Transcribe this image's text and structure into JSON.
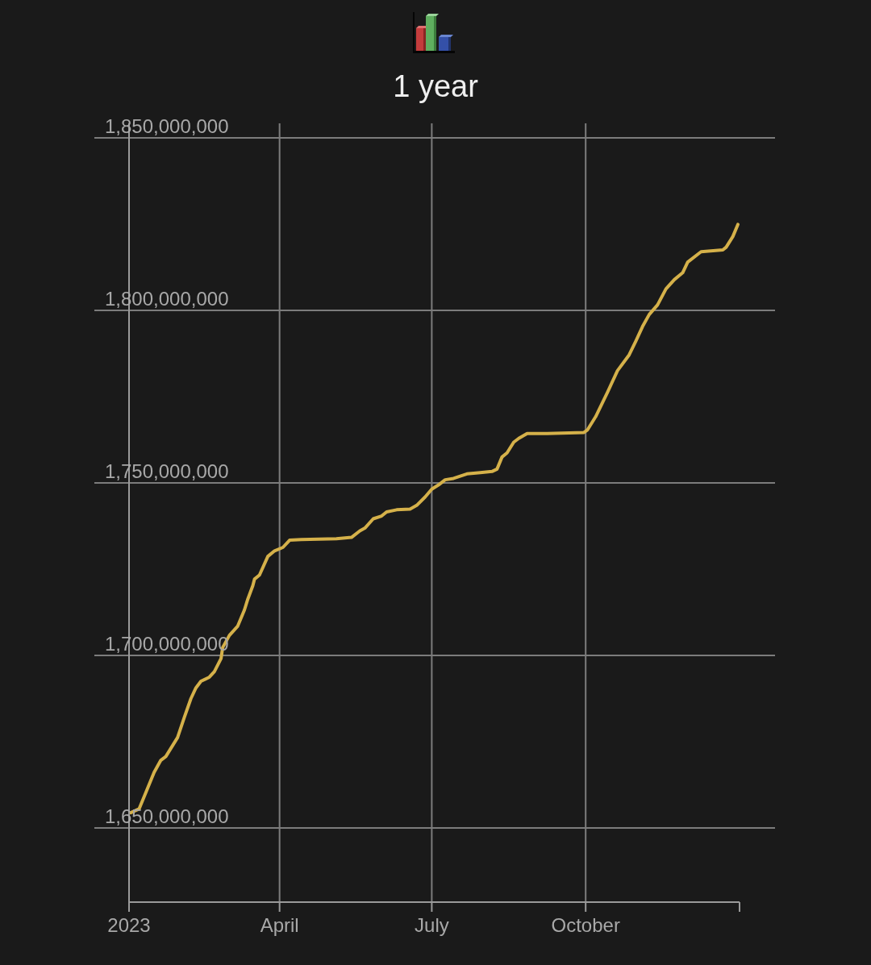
{
  "chart_data": {
    "type": "line",
    "title": "1 year",
    "x": [
      "2023-01-02",
      "2023-01-07",
      "2023-01-12",
      "2023-01-16",
      "2023-01-20",
      "2023-01-23",
      "2023-01-30",
      "2023-02-03",
      "2023-02-07",
      "2023-02-10",
      "2023-02-13",
      "2023-02-18",
      "2023-02-21",
      "2023-02-25",
      "2023-02-26",
      "2023-03-02",
      "2023-03-07",
      "2023-03-11",
      "2023-03-13",
      "2023-03-16",
      "2023-03-17",
      "2023-03-20",
      "2023-03-25",
      "2023-03-29",
      "2023-04-03",
      "2023-04-07",
      "2023-04-14",
      "2023-05-05",
      "2023-05-14",
      "2023-05-19",
      "2023-05-22",
      "2023-05-27",
      "2023-06-01",
      "2023-06-04",
      "2023-06-10",
      "2023-06-18",
      "2023-06-22",
      "2023-06-27",
      "2023-07-01",
      "2023-07-05",
      "2023-07-09",
      "2023-07-14",
      "2023-07-22",
      "2023-07-30",
      "2023-08-06",
      "2023-08-09",
      "2023-08-12",
      "2023-08-15",
      "2023-08-19",
      "2023-08-22",
      "2023-08-27",
      "2023-09-08",
      "2023-09-30",
      "2023-10-02",
      "2023-10-07",
      "2023-10-14",
      "2023-10-20",
      "2023-10-27",
      "2023-10-31",
      "2023-11-04",
      "2023-11-08",
      "2023-11-13",
      "2023-11-18",
      "2023-11-23",
      "2023-11-28",
      "2023-12-01",
      "2023-12-09",
      "2023-12-22",
      "2023-12-24",
      "2023-12-28",
      "2023-12-31"
    ],
    "series": [
      {
        "color": "#d5b14a",
        "values": [
          1654400000,
          1655500000,
          1661400000,
          1666100000,
          1669600000,
          1670700000,
          1676200000,
          1682000000,
          1687500000,
          1690600000,
          1692500000,
          1693700000,
          1695300000,
          1699100000,
          1702300000,
          1705800000,
          1708500000,
          1713200000,
          1716300000,
          1720200000,
          1722100000,
          1723300000,
          1728700000,
          1730300000,
          1731300000,
          1733400000,
          1733600000,
          1733800000,
          1734200000,
          1736100000,
          1736900000,
          1739600000,
          1740400000,
          1741600000,
          1742200000,
          1742400000,
          1743500000,
          1745900000,
          1748200000,
          1749400000,
          1750900000,
          1751300000,
          1752600000,
          1753000000,
          1753300000,
          1754000000,
          1757500000,
          1758700000,
          1761800000,
          1762900000,
          1764300000,
          1764300000,
          1764600000,
          1765300000,
          1769200000,
          1776200000,
          1782500000,
          1787100000,
          1791100000,
          1795300000,
          1798800000,
          1801600000,
          1806200000,
          1808900000,
          1810900000,
          1814000000,
          1817000000,
          1817500000,
          1818300000,
          1821400000,
          1824900000
        ]
      }
    ],
    "xlim": [
      "2023-01-01",
      "2024-01-01"
    ],
    "xticks": [
      {
        "value": "2023-01-01",
        "label": "2023"
      },
      {
        "value": "2023-04-01",
        "label": "April"
      },
      {
        "value": "2023-07-01",
        "label": "July"
      },
      {
        "value": "2023-10-01",
        "label": "October"
      },
      {
        "value": "2024-01-01",
        "label": null
      }
    ],
    "ylim": [
      1628500000,
      1854200000
    ],
    "yticks": [
      {
        "value": 1650000000,
        "label": "1,650,000,000"
      },
      {
        "value": 1700000000,
        "label": "1,700,000,000"
      },
      {
        "value": 1750000000,
        "label": "1,750,000,000"
      },
      {
        "value": 1800000000,
        "label": "1,800,000,000"
      },
      {
        "value": 1850000000,
        "label": "1,850,000,000"
      }
    ],
    "grid": true,
    "marker": "none",
    "line_style": "solid"
  }
}
